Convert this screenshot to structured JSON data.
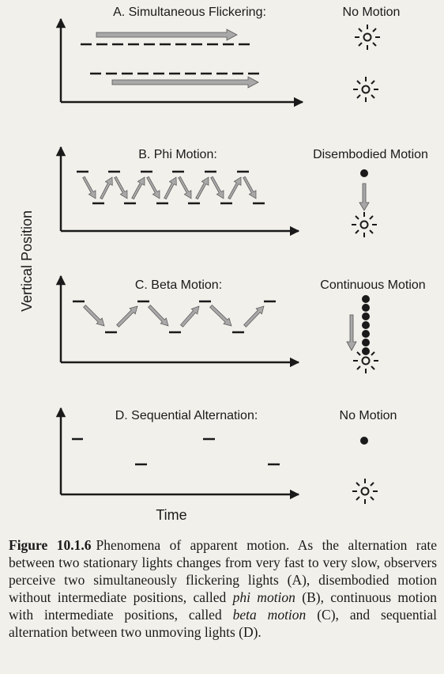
{
  "y_axis_label": "Vertical Position",
  "x_axis_label": "Time",
  "colors": {
    "background": "#f2f0eb",
    "ink": "#1a1a1a",
    "arrow_fill": "#a8a8a8",
    "arrow_stroke": "#555555"
  },
  "panels": [
    {
      "id": "a",
      "title": "A. Simultaneous Flickering:",
      "percept": "No Motion"
    },
    {
      "id": "b",
      "title": "B. Phi Motion:",
      "percept": "Disembodied Motion"
    },
    {
      "id": "c",
      "title": "C. Beta Motion:",
      "percept": "Continuous Motion"
    },
    {
      "id": "d",
      "title": "D. Sequential Alternation:",
      "percept": "No Motion"
    }
  ],
  "caption": {
    "label": "Figure 10.1.6",
    "part1": "Phenomena of apparent motion. As the alternation rate between two stationary lights changes from very fast to very slow, observers perceive two simultaneously flickering lights (A), disembodied motion without intermediate positions, called ",
    "term1": "phi motion",
    "part2": " (B), continuous motion with intermediate positions, called ",
    "term2": "beta motion",
    "part3": " (C), and sequential alternation between two unmoving lights (D)."
  }
}
